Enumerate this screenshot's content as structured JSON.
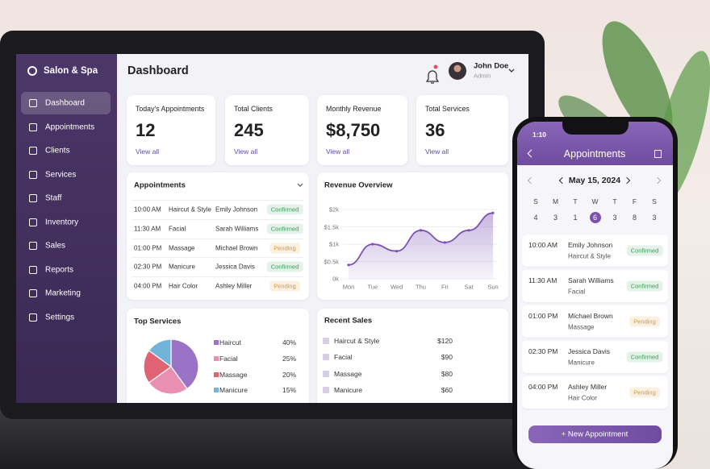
{
  "sidebar": {
    "brand": "Salon & Spa",
    "nav": [
      "Dashboard",
      "Appointments",
      "Clients",
      "Services",
      "Staff",
      "Inventory",
      "Sales",
      "Reports",
      "Marketing",
      "Settings"
    ],
    "active": 0
  },
  "header": {
    "title": "Dashboard",
    "user": "John Doe",
    "role": "Admin"
  },
  "stats": [
    {
      "label": "Today's Appointments",
      "value": "12",
      "link": "View all"
    },
    {
      "label": "Total Clients",
      "value": "245",
      "link": "View all"
    },
    {
      "label": "Monthly Revenue",
      "value": "$8,750",
      "link": "View all"
    },
    {
      "label": "Total Services",
      "value": "36",
      "link": "View all"
    }
  ],
  "status_colors": {
    "Confirmed": "#3a9a5b",
    "Pending": "#e0962a"
  },
  "appointments": {
    "title": "Appointments",
    "rows": [
      [
        "10:00 AM",
        "Haircut & Style",
        "Emily Johnson",
        "Confirmed"
      ],
      [
        "11:30 AM",
        "Facial",
        "Sarah Williams",
        "Confirmed"
      ],
      [
        "01:00 PM",
        "Massage",
        "Michael Brown",
        "Pending"
      ],
      [
        "02:30 PM",
        "Manicure",
        "Jessica Davis",
        "Confirmed"
      ],
      [
        "04:00 PM",
        "Hair Color",
        "Ashley Miller",
        "Pending"
      ]
    ]
  },
  "chart_data": [
    {
      "type": "line",
      "title": "Revenue Overview",
      "categories": [
        "Mon",
        "Tue",
        "Wed",
        "Thu",
        "Fri",
        "Sat",
        "Sun"
      ],
      "values": [
        400,
        1000,
        800,
        1400,
        1050,
        1400,
        1900
      ],
      "color": "#7b52b0",
      "grid": true,
      "ylim": [
        0,
        2000
      ],
      "yticks": [
        {
          "value": 0,
          "label": "0k"
        },
        {
          "value": 500,
          "label": "$0.5k"
        },
        {
          "value": 1000,
          "label": "$1k"
        },
        {
          "value": 1500,
          "label": "$1.5k"
        },
        {
          "value": 2000,
          "label": "$2k"
        }
      ]
    },
    {
      "type": "pie",
      "title": "Top Services",
      "categories": [
        "Haircut",
        "Facial",
        "Massage",
        "Manicure"
      ],
      "values": [
        40,
        25,
        20,
        15
      ],
      "value_labels": [
        "40%",
        "25%",
        "20%",
        "15%"
      ],
      "colors": [
        "#9a72c6",
        "#e98fb2",
        "#e06374",
        "#72b3d9"
      ]
    }
  ],
  "recent_sales": {
    "title": "Recent Sales",
    "rows": [
      [
        "Haircut & Style",
        "$120"
      ],
      [
        "Facial",
        "$90"
      ],
      [
        "Massage",
        "$80"
      ],
      [
        "Manicure",
        "$60"
      ]
    ]
  },
  "phone": {
    "time": "1:10",
    "title": "Appointments",
    "date": "May 15, 2024",
    "weekdays": [
      "S",
      "M",
      "T",
      "W",
      "T",
      "F",
      "S"
    ],
    "days": [
      "4",
      "3",
      "1",
      "6",
      "3",
      "8",
      "3"
    ],
    "selected": 3,
    "appointments": [
      [
        "10:00 AM",
        "Emily Johnson",
        "Haircut & Style",
        "Confirmed"
      ],
      [
        "11:30 AM",
        "Sarah Williams",
        "Facial",
        "Confirmed"
      ],
      [
        "01:00 PM",
        "Michael Brown",
        "Massage",
        "Pending"
      ],
      [
        "02:30 PM",
        "Jessica Davis",
        "Manicure",
        "Confirmed"
      ],
      [
        "04:00 PM",
        "Ashley Miller",
        "Hair Color",
        "Pending"
      ]
    ],
    "button": "+ New Appointment"
  }
}
